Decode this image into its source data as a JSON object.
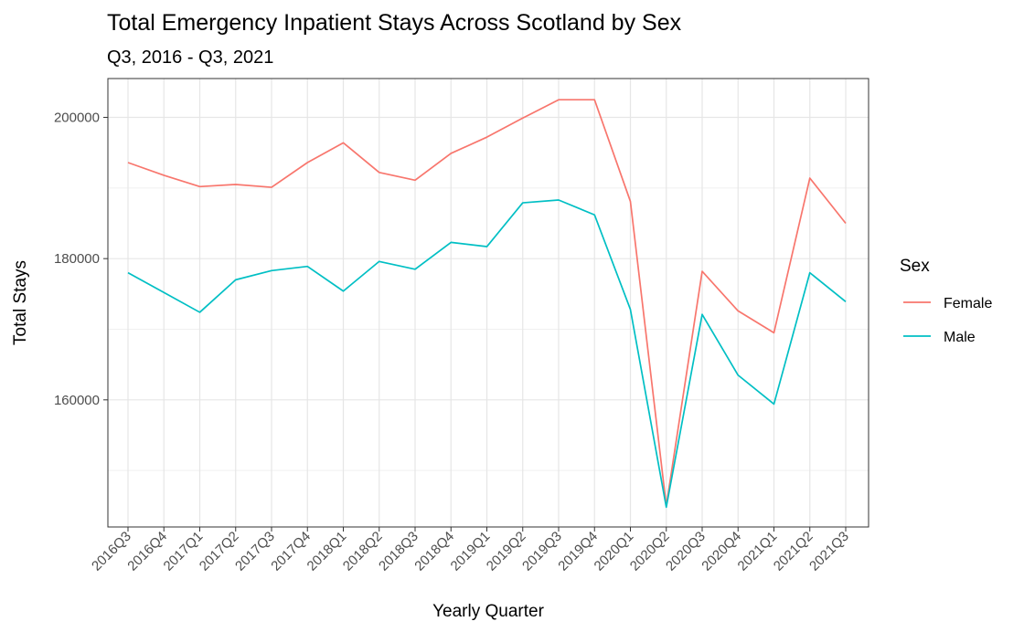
{
  "chart_data": {
    "type": "line",
    "title": "Total Emergency Inpatient Stays Across Scotland by Sex",
    "subtitle": "Q3, 2016 - Q3, 2021",
    "xlabel": "Yearly Quarter",
    "ylabel": "Total Stays",
    "x": [
      "2016Q3",
      "2016Q4",
      "2017Q1",
      "2017Q2",
      "2017Q3",
      "2017Q4",
      "2018Q1",
      "2018Q2",
      "2018Q3",
      "2018Q4",
      "2019Q1",
      "2019Q2",
      "2019Q3",
      "2019Q4",
      "2020Q1",
      "2020Q2",
      "2020Q3",
      "2020Q4",
      "2021Q1",
      "2021Q2",
      "2021Q3"
    ],
    "ylim": [
      142000,
      205500
    ],
    "yticks": [
      160000,
      180000,
      200000
    ],
    "grid": true,
    "legend_title": "Sex",
    "legend_position": "right",
    "series": [
      {
        "name": "Female",
        "color": "#F8766D",
        "values": [
          193600,
          191800,
          190200,
          190500,
          190100,
          193600,
          196400,
          192200,
          191100,
          194900,
          197200,
          199900,
          202500,
          202500,
          188100,
          145000,
          178200,
          172600,
          169500,
          191400,
          185000
        ]
      },
      {
        "name": "Male",
        "color": "#00BFC4",
        "values": [
          178000,
          175200,
          172400,
          177000,
          178300,
          178900,
          175400,
          179600,
          178500,
          182300,
          181700,
          187900,
          188300,
          186200,
          172800,
          144800,
          172100,
          163500,
          159400,
          178000,
          173900
        ]
      }
    ]
  }
}
